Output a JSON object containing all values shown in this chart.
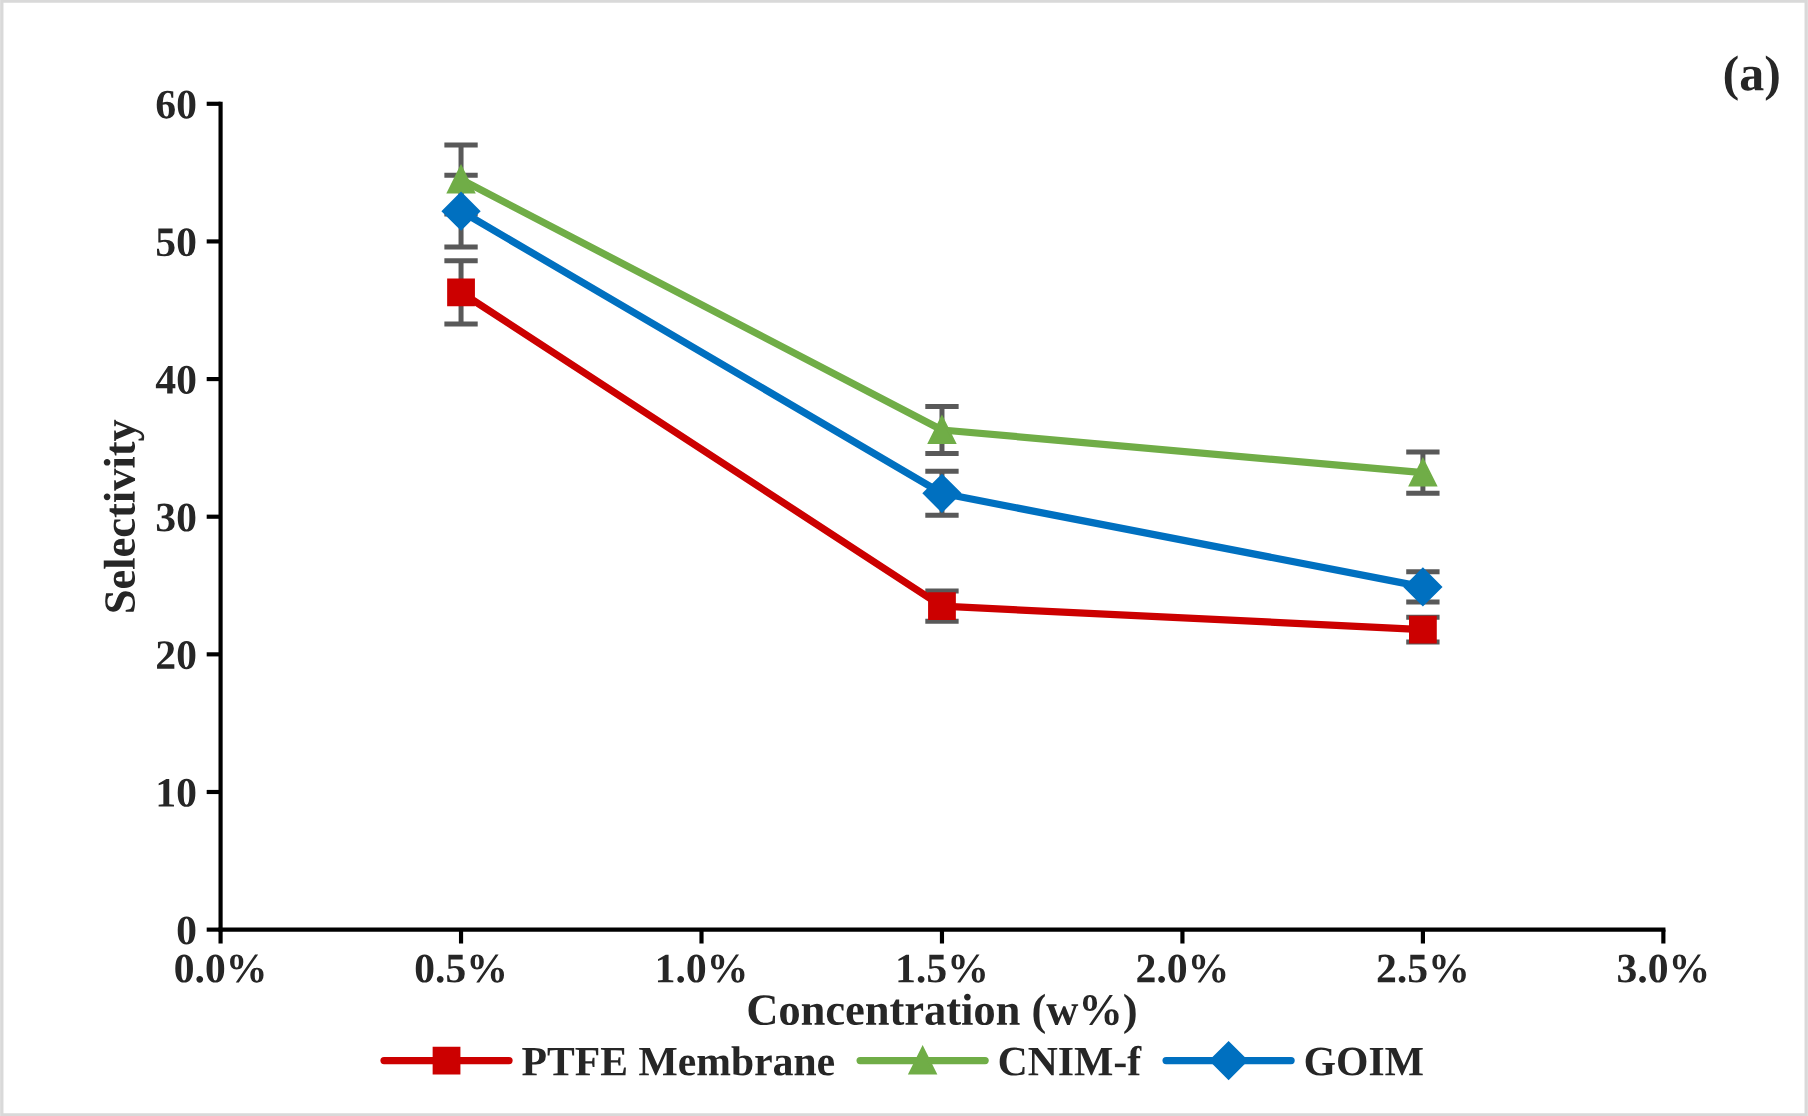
{
  "chart_data": {
    "type": "line",
    "xlabel": "Concentration (w%)",
    "ylabel": "Selectivity",
    "x": [
      0.5,
      1.5,
      2.5
    ],
    "series": [
      {
        "name": "PTFE Membrane",
        "color": "#cc0000",
        "marker": "square",
        "values": [
          46.3,
          23.5,
          21.8
        ],
        "errors": [
          2.3,
          1.1,
          0.9
        ]
      },
      {
        "name": "CNIM-f",
        "color": "#70ad47",
        "marker": "triangle",
        "values": [
          54.5,
          36.3,
          33.2
        ],
        "errors": [
          2.5,
          1.7,
          1.5
        ]
      },
      {
        "name": "GOIM",
        "color": "#0070c0",
        "marker": "diamond",
        "values": [
          52.2,
          31.7,
          24.9
        ],
        "errors": [
          2.6,
          1.6,
          1.1
        ]
      }
    ],
    "xlim": [
      0,
      3
    ],
    "xticks": [
      {
        "value": 0,
        "label": "0.0%"
      },
      {
        "value": 0.5,
        "label": "0.5%"
      },
      {
        "value": 1,
        "label": "1.0%"
      },
      {
        "value": 1.5,
        "label": "1.5%"
      },
      {
        "value": 2,
        "label": "2.0%"
      },
      {
        "value": 2.5,
        "label": "2.5%"
      },
      {
        "value": 3,
        "label": "3.0%"
      }
    ],
    "ylim": [
      0,
      60
    ],
    "yticks": [
      0,
      10,
      20,
      30,
      40,
      50,
      60
    ],
    "annotations": [
      "(a)"
    ],
    "legend": "bottom",
    "grid": false
  }
}
